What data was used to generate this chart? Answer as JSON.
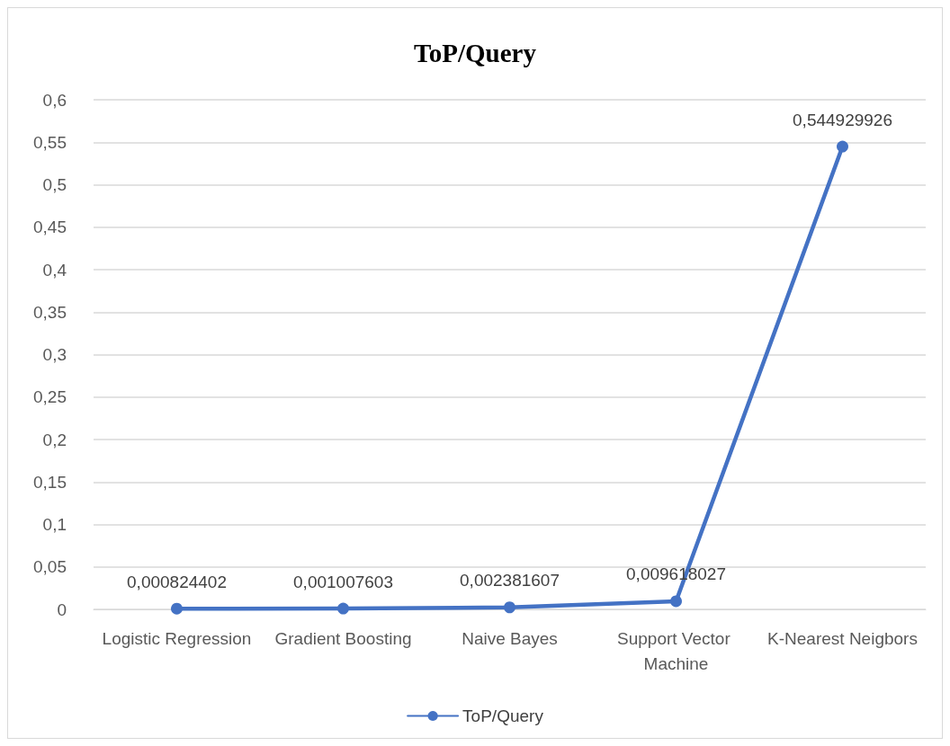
{
  "chart_data": {
    "type": "line",
    "title": "ToP/Query",
    "categories": [
      "Logistic Regression",
      "Gradient Boosting",
      "Naive Bayes",
      "Support Vector Machine",
      "K-Nearest Neigbors"
    ],
    "series": [
      {
        "name": "ToP/Query",
        "color": "#4472c4",
        "values": [
          0.000824402,
          0.001007603,
          0.002381607,
          0.009618027,
          0.544929926
        ],
        "value_labels": [
          "0,000824402",
          "0,001007603",
          "0,002381607",
          "0,009618027",
          "0,544929926"
        ]
      }
    ],
    "ylim": [
      0,
      0.6
    ],
    "yticks": [
      {
        "value": 0,
        "label": "0"
      },
      {
        "value": 0.05,
        "label": "0,05"
      },
      {
        "value": 0.1,
        "label": "0,1"
      },
      {
        "value": 0.15,
        "label": "0,15"
      },
      {
        "value": 0.2,
        "label": "0,2"
      },
      {
        "value": 0.25,
        "label": "0,25"
      },
      {
        "value": 0.3,
        "label": "0,3"
      },
      {
        "value": 0.35,
        "label": "0,35"
      },
      {
        "value": 0.4,
        "label": "0,4"
      },
      {
        "value": 0.45,
        "label": "0,45"
      },
      {
        "value": 0.5,
        "label": "0,5"
      },
      {
        "value": 0.55,
        "label": "0,55"
      },
      {
        "value": 0.6,
        "label": "0,6"
      }
    ],
    "grid": "y",
    "legend": "bottom",
    "marker": "circle",
    "line_style": "solid"
  }
}
